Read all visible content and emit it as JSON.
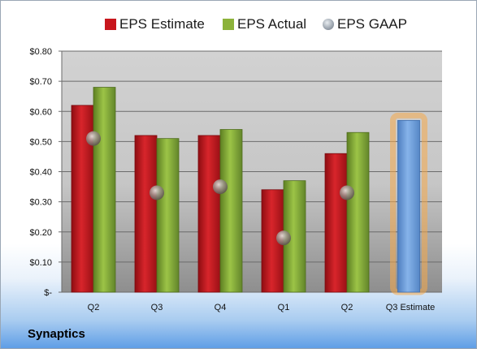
{
  "company": "Synaptics",
  "colors": {
    "estimate": "#c8161d",
    "actual": "#8cb23a",
    "gaap": "#9aa3ad",
    "projection": "#6fa0dc",
    "projection_glow": "#f5a94a"
  },
  "chart_data": {
    "type": "bar",
    "categories": [
      "Q2",
      "Q3",
      "Q4",
      "Q1",
      "Q2",
      "Q3 Estimate"
    ],
    "series": [
      {
        "name": "EPS Estimate",
        "values": [
          0.62,
          0.52,
          0.52,
          0.34,
          0.46,
          null
        ]
      },
      {
        "name": "EPS Actual",
        "values": [
          0.68,
          0.51,
          0.54,
          0.37,
          0.53,
          0.57
        ]
      },
      {
        "name": "EPS GAAP",
        "values": [
          0.51,
          0.33,
          0.35,
          0.18,
          0.33,
          null
        ]
      }
    ],
    "title": "",
    "xlabel": "",
    "ylabel": "",
    "ylim": [
      0,
      0.8
    ],
    "yticks": [
      0,
      0.1,
      0.2,
      0.3,
      0.4,
      0.5,
      0.6,
      0.7,
      0.8
    ],
    "ytick_labels": [
      "$-",
      "$0.10",
      "$0.20",
      "$0.30",
      "$0.40",
      "$0.50",
      "$0.60",
      "$0.70",
      "$0.80"
    ],
    "grid": true,
    "legend": "top"
  }
}
